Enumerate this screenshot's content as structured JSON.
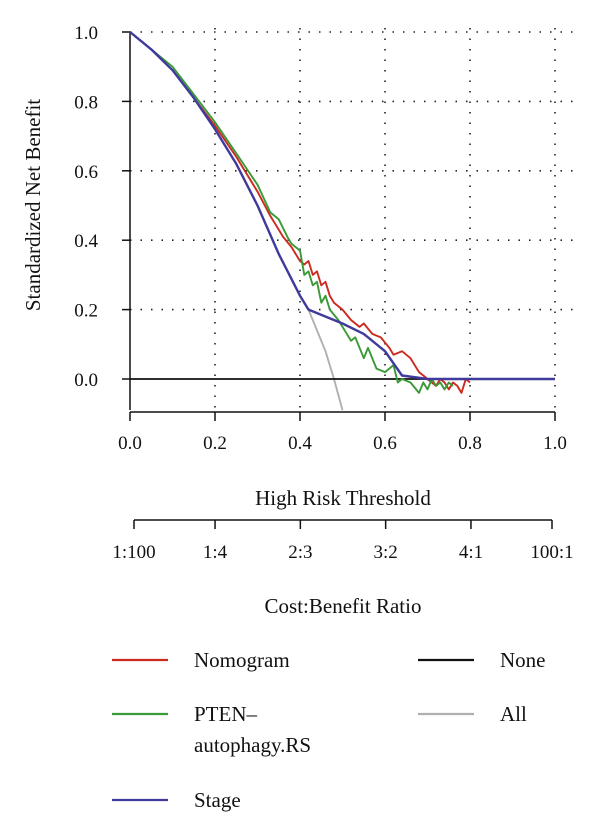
{
  "chart_data": {
    "type": "line",
    "title": "",
    "xlabel": "High Risk Threshold",
    "ylabel": "Standardized Net Benefit",
    "xlim": [
      0.0,
      1.0
    ],
    "ylim": [
      -0.09,
      1.0
    ],
    "x_ticks": [
      0.0,
      0.2,
      0.4,
      0.6,
      0.8,
      1.0
    ],
    "x_tick_labels": [
      "0.0",
      "0.2",
      "0.4",
      "0.6",
      "0.8",
      "1.0"
    ],
    "y_ticks": [
      0.0,
      0.2,
      0.4,
      0.6,
      0.8,
      1.0
    ],
    "y_tick_labels": [
      "0.0",
      "0.2",
      "0.4",
      "0.6",
      "0.8",
      "1.0"
    ],
    "grid": true,
    "secondary_axis": {
      "label": "Cost:Benefit Ratio",
      "ticks": [
        0.01,
        0.2,
        0.4,
        0.6,
        0.8,
        0.99
      ],
      "tick_labels": [
        "1:100",
        "1:4",
        "2:3",
        "3:2",
        "4:1",
        "100:1"
      ]
    },
    "legend_position": "bottom",
    "series": [
      {
        "name": "Nomogram",
        "color": "#cc2a1e",
        "x": [
          0.0,
          0.05,
          0.1,
          0.15,
          0.2,
          0.25,
          0.3,
          0.33,
          0.35,
          0.36,
          0.38,
          0.4,
          0.41,
          0.42,
          0.43,
          0.44,
          0.45,
          0.46,
          0.47,
          0.48,
          0.5,
          0.52,
          0.54,
          0.55,
          0.57,
          0.59,
          0.61,
          0.62,
          0.64,
          0.66,
          0.68,
          0.69,
          0.7,
          0.72,
          0.73,
          0.74,
          0.75,
          0.76,
          0.77,
          0.78,
          0.79,
          0.8
        ],
        "y": [
          1.0,
          0.95,
          0.89,
          0.81,
          0.73,
          0.64,
          0.54,
          0.47,
          0.43,
          0.41,
          0.38,
          0.34,
          0.33,
          0.34,
          0.3,
          0.31,
          0.27,
          0.28,
          0.24,
          0.22,
          0.2,
          0.17,
          0.15,
          0.16,
          0.13,
          0.12,
          0.09,
          0.07,
          0.08,
          0.06,
          0.02,
          0.01,
          0.0,
          -0.02,
          0.0,
          -0.01,
          -0.03,
          -0.01,
          -0.02,
          -0.04,
          0.0,
          -0.01
        ]
      },
      {
        "name": "PTEN–autophagy.RS",
        "color": "#3a9a37",
        "x": [
          0.0,
          0.05,
          0.1,
          0.15,
          0.2,
          0.25,
          0.3,
          0.33,
          0.35,
          0.37,
          0.38,
          0.4,
          0.41,
          0.42,
          0.43,
          0.44,
          0.45,
          0.46,
          0.47,
          0.49,
          0.5,
          0.51,
          0.52,
          0.53,
          0.55,
          0.56,
          0.58,
          0.6,
          0.62,
          0.63,
          0.64,
          0.66,
          0.68,
          0.69,
          0.7,
          0.71,
          0.72,
          0.73,
          0.74,
          0.75,
          0.76
        ],
        "y": [
          1.0,
          0.95,
          0.9,
          0.82,
          0.74,
          0.65,
          0.56,
          0.48,
          0.46,
          0.41,
          0.39,
          0.37,
          0.3,
          0.31,
          0.27,
          0.28,
          0.22,
          0.24,
          0.2,
          0.17,
          0.15,
          0.13,
          0.11,
          0.12,
          0.06,
          0.09,
          0.03,
          0.02,
          0.04,
          -0.01,
          0.0,
          -0.01,
          -0.04,
          -0.01,
          -0.03,
          0.0,
          -0.02,
          -0.01,
          -0.03,
          -0.01,
          -0.02
        ]
      },
      {
        "name": "Stage",
        "color": "#3f3a9c",
        "x": [
          0.0,
          0.05,
          0.1,
          0.15,
          0.2,
          0.25,
          0.3,
          0.35,
          0.4,
          0.42,
          0.5,
          0.55,
          0.6,
          0.64,
          0.7,
          1.0
        ],
        "y": [
          1.0,
          0.95,
          0.89,
          0.81,
          0.72,
          0.62,
          0.5,
          0.36,
          0.24,
          0.2,
          0.16,
          0.13,
          0.08,
          0.01,
          0.0,
          0.0
        ]
      },
      {
        "name": "None",
        "color": "#111111",
        "x": [
          0.0,
          1.0
        ],
        "y": [
          0.0,
          0.0
        ]
      },
      {
        "name": "All",
        "color": "#b0b0b0",
        "x": [
          0.42,
          0.44,
          0.46,
          0.48,
          0.5
        ],
        "y": [
          0.2,
          0.14,
          0.08,
          0.0,
          -0.09
        ]
      }
    ]
  },
  "legend": [
    {
      "label": "Nomogram",
      "series": 0
    },
    {
      "label": "PTEN–\nautophagy.RS",
      "series": 1
    },
    {
      "label": "Stage",
      "series": 2
    },
    {
      "label": "None",
      "series": 3
    },
    {
      "label": "All",
      "series": 4
    }
  ]
}
